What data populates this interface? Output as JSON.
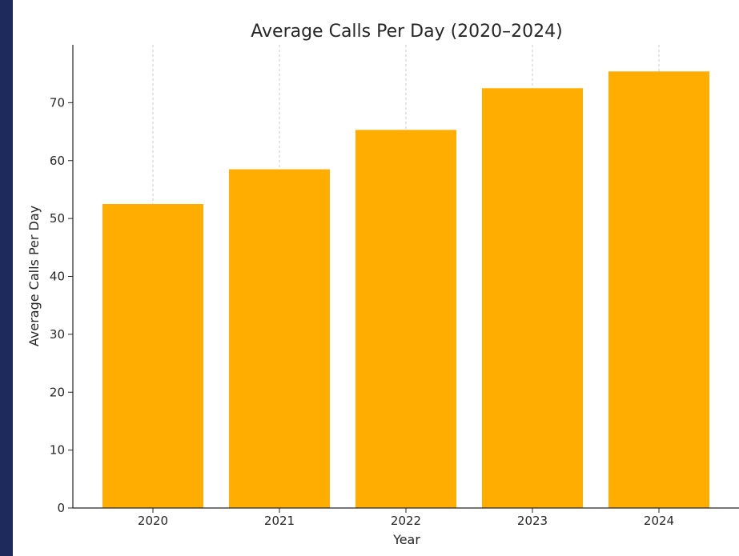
{
  "chart_data": {
    "type": "bar",
    "title": "Average Calls Per Day (2020–2024)",
    "xlabel": "Year",
    "ylabel": "Average Calls Per Day",
    "categories": [
      "2020",
      "2021",
      "2022",
      "2023",
      "2024"
    ],
    "values": [
      52.5,
      58.5,
      65.3,
      72.5,
      75.4
    ],
    "ylim": [
      0,
      80
    ],
    "yticks": [
      0,
      10,
      20,
      30,
      40,
      50,
      60,
      70
    ],
    "grid": "vertical dashed",
    "bar_color": "#ffad00",
    "background_color": "#1f2a5c"
  }
}
